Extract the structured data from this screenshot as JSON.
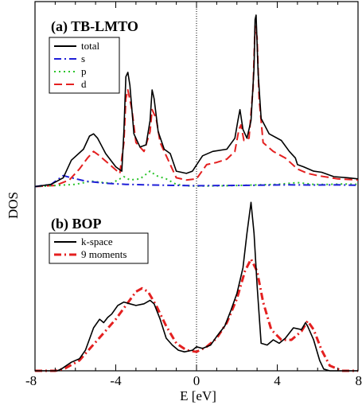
{
  "chart_data": {
    "type": "line",
    "xlabel": "E  [eV]",
    "ylabel": "DOS",
    "xlim": [
      -8,
      8
    ],
    "x_ticks": [
      "-8",
      "-4",
      "0",
      "4",
      "8"
    ],
    "grid": false,
    "fermi_line_x": 0,
    "panels": [
      {
        "id": "a",
        "title": "(a) TB-LMTO",
        "legend_position": "top-left",
        "ylim": [
          -0.2,
          8.2
        ],
        "series": [
          {
            "name": "total",
            "color": "#000000",
            "dash": "solid",
            "points": [
              [
                -8,
                0
              ],
              [
                -7.2,
                0.1
              ],
              [
                -6.6,
                0.4
              ],
              [
                -6.2,
                1.2
              ],
              [
                -5.6,
                1.7
              ],
              [
                -5.3,
                2.3
              ],
              [
                -5.1,
                2.4
              ],
              [
                -4.9,
                2.2
              ],
              [
                -4.5,
                1.5
              ],
              [
                -4.0,
                0.9
              ],
              [
                -3.7,
                0.7
              ],
              [
                -3.6,
                2.5
              ],
              [
                -3.5,
                5.0
              ],
              [
                -3.4,
                5.2
              ],
              [
                -3.3,
                4.6
              ],
              [
                -3.1,
                2.4
              ],
              [
                -2.8,
                1.8
              ],
              [
                -2.5,
                1.9
              ],
              [
                -2.3,
                3.0
              ],
              [
                -2.2,
                4.4
              ],
              [
                -2.1,
                4.0
              ],
              [
                -1.9,
                2.5
              ],
              [
                -1.6,
                1.7
              ],
              [
                -1.3,
                1.5
              ],
              [
                -1.0,
                0.7
              ],
              [
                -0.5,
                0.6
              ],
              [
                -0.2,
                0.7
              ],
              [
                0.3,
                1.4
              ],
              [
                0.8,
                1.6
              ],
              [
                1.5,
                1.7
              ],
              [
                1.9,
                2.2
              ],
              [
                2.05,
                3.0
              ],
              [
                2.15,
                3.5
              ],
              [
                2.3,
                2.6
              ],
              [
                2.5,
                2.2
              ],
              [
                2.7,
                3.0
              ],
              [
                2.85,
                5.4
              ],
              [
                2.9,
                7.6
              ],
              [
                2.95,
                7.8
              ],
              [
                3.05,
                5.2
              ],
              [
                3.2,
                3.1
              ],
              [
                3.6,
                2.4
              ],
              [
                4.2,
                2.1
              ],
              [
                4.6,
                1.6
              ],
              [
                4.9,
                1.3
              ],
              [
                5.0,
                1.0
              ],
              [
                5.3,
                0.9
              ],
              [
                5.8,
                0.7
              ],
              [
                6.2,
                0.65
              ],
              [
                6.8,
                0.45
              ],
              [
                7.5,
                0.4
              ],
              [
                8,
                0.35
              ]
            ]
          },
          {
            "name": "s",
            "color": "#1f1fd8",
            "dash": "dashdot",
            "points": [
              [
                -8,
                0
              ],
              [
                -7.2,
                0.1
              ],
              [
                -6.6,
                0.5
              ],
              [
                -6.2,
                0.4
              ],
              [
                -5.5,
                0.25
              ],
              [
                -4.5,
                0.15
              ],
              [
                -3.5,
                0.1
              ],
              [
                -2.5,
                0.08
              ],
              [
                -1.5,
                0.06
              ],
              [
                0,
                0.04
              ],
              [
                1.5,
                0.05
              ],
              [
                3,
                0.06
              ],
              [
                4.5,
                0.08
              ],
              [
                6,
                0.07
              ],
              [
                7,
                0.08
              ],
              [
                8,
                0.06
              ]
            ]
          },
          {
            "name": "p",
            "color": "#2ac42a",
            "dash": "dotted",
            "points": [
              [
                -8,
                0
              ],
              [
                -7.0,
                0.05
              ],
              [
                -6.0,
                0.1
              ],
              [
                -5.2,
                0.25
              ],
              [
                -4.8,
                0.2
              ],
              [
                -4.2,
                0.15
              ],
              [
                -3.6,
                0.45
              ],
              [
                -3.3,
                0.3
              ],
              [
                -2.8,
                0.35
              ],
              [
                -2.3,
                0.7
              ],
              [
                -2.0,
                0.5
              ],
              [
                -1.5,
                0.35
              ],
              [
                -1.0,
                0.1
              ],
              [
                -0.5,
                0.04
              ],
              [
                0,
                0.02
              ],
              [
                1.0,
                0.03
              ],
              [
                2.0,
                0.05
              ],
              [
                3.0,
                0.08
              ],
              [
                4.0,
                0.1
              ],
              [
                5.0,
                0.18
              ],
              [
                5.8,
                0.1
              ],
              [
                6.5,
                0.1
              ],
              [
                7.3,
                0.12
              ],
              [
                8,
                0.1
              ]
            ]
          },
          {
            "name": "d",
            "color": "#e42020",
            "dash": "dashed",
            "points": [
              [
                -8,
                0
              ],
              [
                -7.0,
                0.05
              ],
              [
                -6.3,
                0.3
              ],
              [
                -5.8,
                0.8
              ],
              [
                -5.4,
                1.3
              ],
              [
                -5.1,
                1.6
              ],
              [
                -4.8,
                1.4
              ],
              [
                -4.3,
                1.0
              ],
              [
                -3.8,
                0.6
              ],
              [
                -3.6,
                2.0
              ],
              [
                -3.5,
                4.0
              ],
              [
                -3.4,
                4.4
              ],
              [
                -3.2,
                3.5
              ],
              [
                -3.0,
                2.0
              ],
              [
                -2.6,
                1.6
              ],
              [
                -2.3,
                2.5
              ],
              [
                -2.2,
                3.5
              ],
              [
                -2.0,
                3.1
              ],
              [
                -1.8,
                2.0
              ],
              [
                -1.4,
                1.2
              ],
              [
                -1.0,
                0.4
              ],
              [
                -0.5,
                0.3
              ],
              [
                0,
                0.35
              ],
              [
                0.5,
                1.0
              ],
              [
                1.0,
                1.1
              ],
              [
                1.5,
                1.25
              ],
              [
                1.9,
                1.6
              ],
              [
                2.1,
                2.6
              ],
              [
                2.2,
                2.8
              ],
              [
                2.35,
                2.1
              ],
              [
                2.6,
                2.2
              ],
              [
                2.8,
                4.5
              ],
              [
                2.9,
                7.3
              ],
              [
                3.0,
                6.8
              ],
              [
                3.1,
                4.0
              ],
              [
                3.3,
                2.0
              ],
              [
                3.8,
                1.6
              ],
              [
                4.4,
                1.3
              ],
              [
                5.0,
                0.8
              ],
              [
                5.5,
                0.6
              ],
              [
                6.0,
                0.5
              ],
              [
                7.0,
                0.35
              ],
              [
                8,
                0.3
              ]
            ]
          }
        ]
      },
      {
        "id": "b",
        "title": "(b) BOP",
        "legend_position": "top-left",
        "ylim": [
          0,
          10
        ],
        "series": [
          {
            "name": "k-space",
            "color": "#000000",
            "dash": "solid",
            "points": [
              [
                -8,
                0
              ],
              [
                -6.9,
                0
              ],
              [
                -6.7,
                0.1
              ],
              [
                -6.2,
                0.5
              ],
              [
                -5.8,
                0.7
              ],
              [
                -5.5,
                1.2
              ],
              [
                -5.1,
                2.5
              ],
              [
                -4.8,
                3.0
              ],
              [
                -4.6,
                2.8
              ],
              [
                -4.4,
                3.1
              ],
              [
                -4.2,
                3.3
              ],
              [
                -3.9,
                3.8
              ],
              [
                -3.6,
                4.0
              ],
              [
                -3.3,
                3.9
              ],
              [
                -3.0,
                3.8
              ],
              [
                -2.6,
                3.9
              ],
              [
                -2.3,
                4.1
              ],
              [
                -2.1,
                3.9
              ],
              [
                -1.8,
                3.0
              ],
              [
                -1.5,
                1.9
              ],
              [
                -1.2,
                1.5
              ],
              [
                -0.9,
                1.2
              ],
              [
                -0.6,
                1.1
              ],
              [
                -0.2,
                1.2
              ],
              [
                0,
                1.4
              ],
              [
                0.3,
                1.3
              ],
              [
                0.7,
                1.5
              ],
              [
                1.0,
                2.0
              ],
              [
                1.4,
                2.6
              ],
              [
                1.7,
                3.5
              ],
              [
                2.0,
                4.5
              ],
              [
                2.3,
                6.0
              ],
              [
                2.5,
                8.0
              ],
              [
                2.7,
                9.8
              ],
              [
                2.85,
                8.0
              ],
              [
                3.0,
                5.0
              ],
              [
                3.2,
                1.6
              ],
              [
                3.5,
                1.5
              ],
              [
                3.8,
                1.8
              ],
              [
                4.1,
                1.6
              ],
              [
                4.4,
                1.9
              ],
              [
                4.8,
                2.5
              ],
              [
                5.2,
                2.4
              ],
              [
                5.4,
                2.8
              ],
              [
                5.5,
                2.6
              ],
              [
                5.8,
                1.8
              ],
              [
                6.1,
                0.6
              ],
              [
                6.3,
                0.1
              ],
              [
                6.6,
                0
              ],
              [
                8,
                0
              ]
            ]
          },
          {
            "name": "9 moments",
            "color": "#e42020",
            "dash": "dashdot",
            "points": [
              [
                -8,
                0
              ],
              [
                -7.0,
                0
              ],
              [
                -6.5,
                0.15
              ],
              [
                -5.8,
                0.6
              ],
              [
                -5.2,
                1.4
              ],
              [
                -4.6,
                2.2
              ],
              [
                -4.0,
                3.0
              ],
              [
                -3.5,
                3.8
              ],
              [
                -3.0,
                4.6
              ],
              [
                -2.7,
                4.8
              ],
              [
                -2.4,
                4.6
              ],
              [
                -2.0,
                3.8
              ],
              [
                -1.5,
                2.6
              ],
              [
                -1.0,
                1.6
              ],
              [
                -0.5,
                1.2
              ],
              [
                0,
                1.1
              ],
              [
                0.5,
                1.4
              ],
              [
                1.0,
                1.9
              ],
              [
                1.5,
                2.8
              ],
              [
                2.0,
                4.2
              ],
              [
                2.4,
                5.8
              ],
              [
                2.7,
                6.5
              ],
              [
                3.0,
                5.8
              ],
              [
                3.3,
                4.0
              ],
              [
                3.7,
                2.4
              ],
              [
                4.2,
                1.8
              ],
              [
                4.7,
                1.8
              ],
              [
                5.2,
                2.3
              ],
              [
                5.5,
                2.9
              ],
              [
                5.8,
                2.4
              ],
              [
                6.2,
                1.2
              ],
              [
                6.6,
                0.3
              ],
              [
                7.2,
                0
              ],
              [
                8,
                0
              ]
            ]
          }
        ]
      }
    ]
  }
}
